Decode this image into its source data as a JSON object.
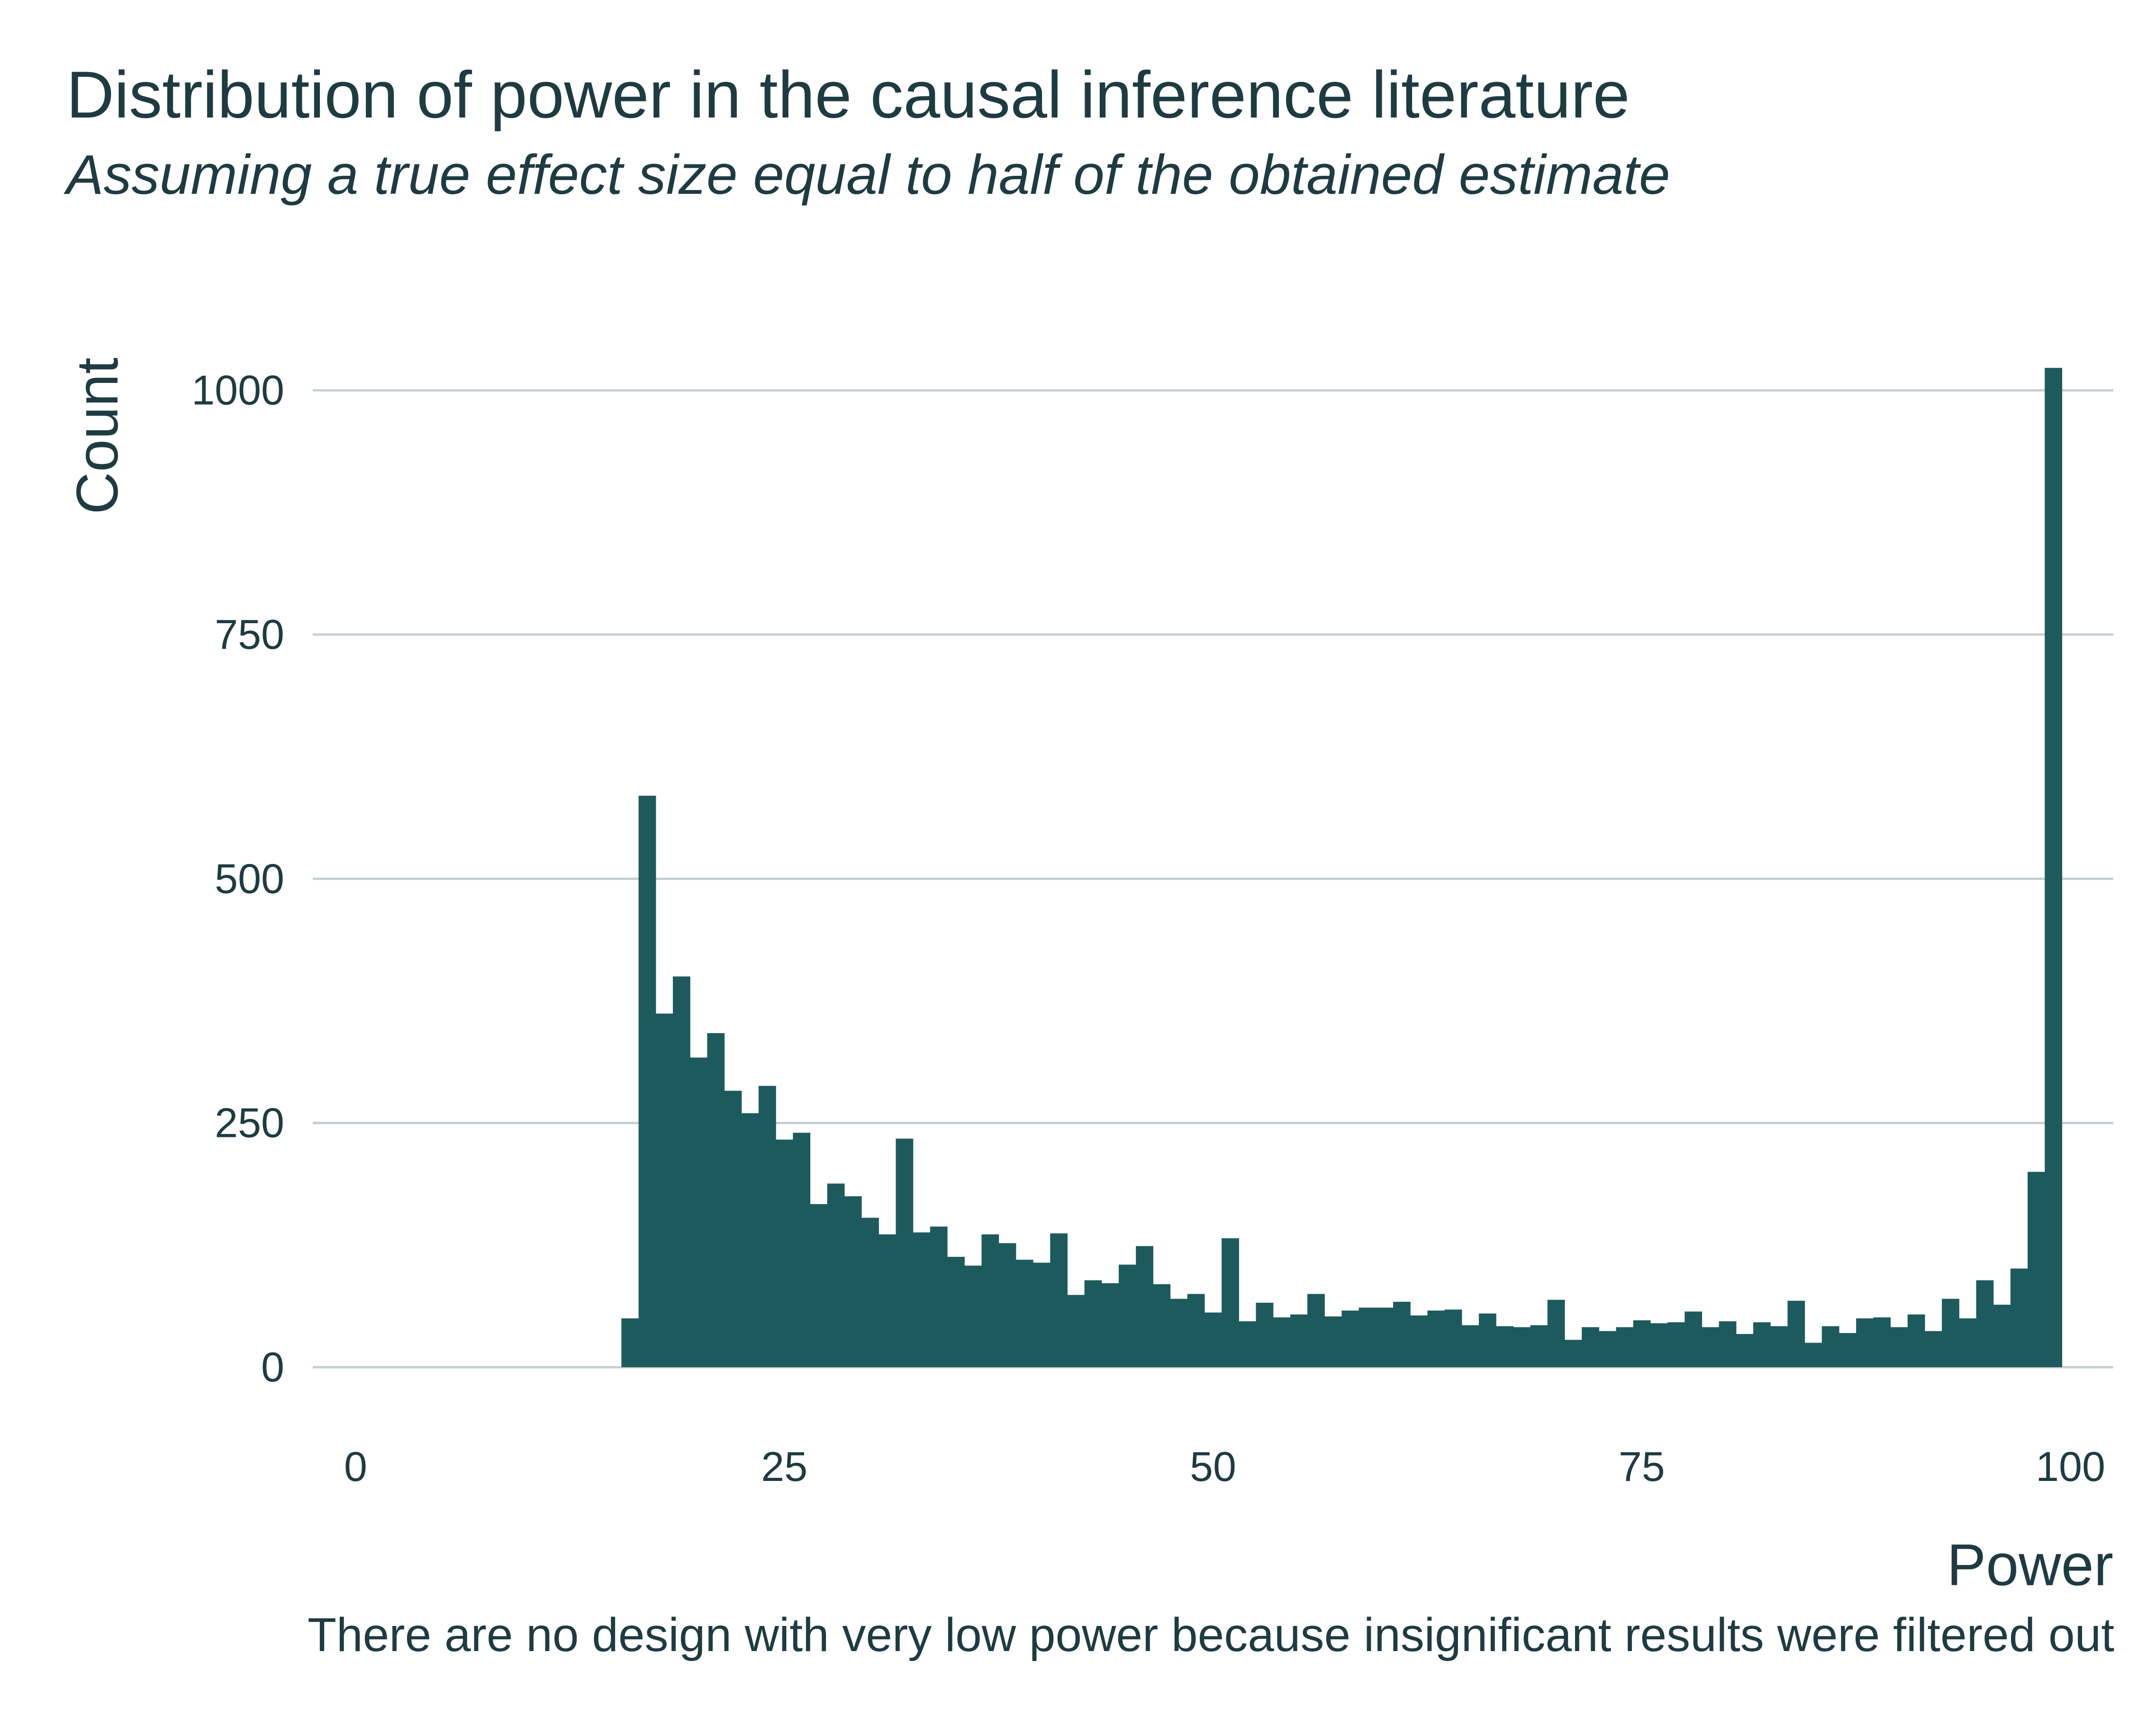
{
  "title": "Distribution of power in the causal inference literature",
  "subtitle": "Assuming a true effect size equal to half of the obtained estimate",
  "caption": "There are no design with very low power because insignificant results were filtered out",
  "colors": {
    "bar": "#1d5a5e",
    "grid": "#c5d0d1",
    "text": "#1f3b42"
  },
  "chart_data": {
    "type": "bar",
    "xlabel": "Power",
    "ylabel": "Count",
    "xlim": [
      -2.5,
      102.5
    ],
    "ylim": [
      0,
      1060
    ],
    "xticks": [
      0,
      25,
      50,
      75,
      100
    ],
    "yticks": [
      0,
      250,
      500,
      750,
      1000
    ],
    "bin_width": 1,
    "grid": "horizontal",
    "bins": [
      {
        "x": 16,
        "y": 50
      },
      {
        "x": 17,
        "y": 585
      },
      {
        "x": 18,
        "y": 362
      },
      {
        "x": 19,
        "y": 400
      },
      {
        "x": 20,
        "y": 317
      },
      {
        "x": 21,
        "y": 342
      },
      {
        "x": 22,
        "y": 283
      },
      {
        "x": 23,
        "y": 260
      },
      {
        "x": 24,
        "y": 288
      },
      {
        "x": 25,
        "y": 233
      },
      {
        "x": 26,
        "y": 240
      },
      {
        "x": 27,
        "y": 167
      },
      {
        "x": 28,
        "y": 188
      },
      {
        "x": 29,
        "y": 175
      },
      {
        "x": 30,
        "y": 153
      },
      {
        "x": 31,
        "y": 136
      },
      {
        "x": 32,
        "y": 234
      },
      {
        "x": 33,
        "y": 138
      },
      {
        "x": 34,
        "y": 144
      },
      {
        "x": 35,
        "y": 113
      },
      {
        "x": 36,
        "y": 104
      },
      {
        "x": 37,
        "y": 136
      },
      {
        "x": 38,
        "y": 127
      },
      {
        "x": 39,
        "y": 110
      },
      {
        "x": 40,
        "y": 107
      },
      {
        "x": 41,
        "y": 137
      },
      {
        "x": 42,
        "y": 74
      },
      {
        "x": 43,
        "y": 89
      },
      {
        "x": 44,
        "y": 86
      },
      {
        "x": 45,
        "y": 105
      },
      {
        "x": 46,
        "y": 124
      },
      {
        "x": 47,
        "y": 85
      },
      {
        "x": 48,
        "y": 70
      },
      {
        "x": 49,
        "y": 75
      },
      {
        "x": 50,
        "y": 56
      },
      {
        "x": 51,
        "y": 132
      },
      {
        "x": 52,
        "y": 47
      },
      {
        "x": 53,
        "y": 66
      },
      {
        "x": 54,
        "y": 51
      },
      {
        "x": 55,
        "y": 54
      },
      {
        "x": 56,
        "y": 75
      },
      {
        "x": 57,
        "y": 52
      },
      {
        "x": 58,
        "y": 58
      },
      {
        "x": 59,
        "y": 61
      },
      {
        "x": 60,
        "y": 61
      },
      {
        "x": 61,
        "y": 67
      },
      {
        "x": 62,
        "y": 53
      },
      {
        "x": 63,
        "y": 58
      },
      {
        "x": 64,
        "y": 59
      },
      {
        "x": 65,
        "y": 43
      },
      {
        "x": 66,
        "y": 55
      },
      {
        "x": 67,
        "y": 42
      },
      {
        "x": 68,
        "y": 41
      },
      {
        "x": 69,
        "y": 43
      },
      {
        "x": 70,
        "y": 69
      },
      {
        "x": 71,
        "y": 28
      },
      {
        "x": 72,
        "y": 41
      },
      {
        "x": 73,
        "y": 37
      },
      {
        "x": 74,
        "y": 41
      },
      {
        "x": 75,
        "y": 48
      },
      {
        "x": 76,
        "y": 45
      },
      {
        "x": 77,
        "y": 46
      },
      {
        "x": 78,
        "y": 57
      },
      {
        "x": 79,
        "y": 41
      },
      {
        "x": 80,
        "y": 47
      },
      {
        "x": 81,
        "y": 34
      },
      {
        "x": 82,
        "y": 46
      },
      {
        "x": 83,
        "y": 42
      },
      {
        "x": 84,
        "y": 68
      },
      {
        "x": 85,
        "y": 25
      },
      {
        "x": 86,
        "y": 42
      },
      {
        "x": 87,
        "y": 35
      },
      {
        "x": 88,
        "y": 50
      },
      {
        "x": 89,
        "y": 51
      },
      {
        "x": 90,
        "y": 41
      },
      {
        "x": 91,
        "y": 54
      },
      {
        "x": 92,
        "y": 37
      },
      {
        "x": 93,
        "y": 70
      },
      {
        "x": 94,
        "y": 50
      },
      {
        "x": 95,
        "y": 89
      },
      {
        "x": 96,
        "y": 64
      },
      {
        "x": 97,
        "y": 101
      },
      {
        "x": 98,
        "y": 200
      },
      {
        "x": 99,
        "y": 1023
      }
    ]
  }
}
